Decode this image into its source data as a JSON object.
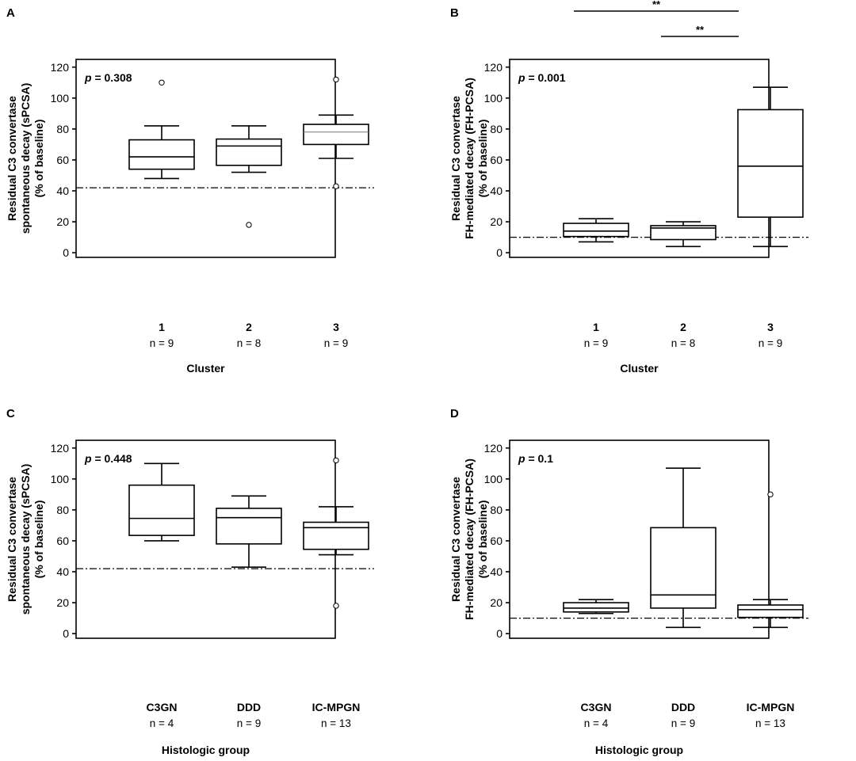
{
  "panels": [
    {
      "letter": "A",
      "pvalue_prefix": "p",
      "pvalue_rest": " = 0.308",
      "ylabel_lines": [
        "Residual C3 convertase",
        "spontaneous decay (sPCSA)",
        "(% of baseline)"
      ],
      "xlabel": "Cluster",
      "categories": [
        "1",
        "2",
        "3"
      ],
      "n_labels": [
        "n = 9",
        "n = 8",
        "n = 9"
      ],
      "significance": []
    },
    {
      "letter": "B",
      "pvalue_prefix": "p",
      "pvalue_rest": " = 0.001",
      "ylabel_lines": [
        "Residual C3 convertase",
        "FH-mediated decay (FH-PCSA)",
        "(% of baseline)"
      ],
      "xlabel": "Cluster",
      "categories": [
        "1",
        "2",
        "3"
      ],
      "n_labels": [
        "n = 9",
        "n = 8",
        "n = 9"
      ],
      "significance": [
        {
          "from": "1",
          "to": "3",
          "label": "**"
        },
        {
          "from": "2",
          "to": "3",
          "label": "**"
        }
      ]
    },
    {
      "letter": "C",
      "pvalue_prefix": "p",
      "pvalue_rest": " = 0.448",
      "ylabel_lines": [
        "Residual C3 convertase",
        "spontaneous decay (sPCSA)",
        "(% of baseline)"
      ],
      "xlabel": "Histologic group",
      "categories": [
        "C3GN",
        "DDD",
        "IC-MPGN"
      ],
      "n_labels": [
        "n = 4",
        "n = 9",
        "n = 13"
      ],
      "significance": []
    },
    {
      "letter": "D",
      "pvalue_prefix": "p",
      "pvalue_rest": " = 0.1",
      "ylabel_lines": [
        "Residual C3 convertase",
        "FH-mediated decay (FH-PCSA)",
        "(% of baseline)"
      ],
      "xlabel": "Histologic group",
      "categories": [
        "C3GN",
        "DDD",
        "IC-MPGN"
      ],
      "n_labels": [
        "n = 4",
        "n = 9",
        "n = 13"
      ],
      "significance": []
    }
  ],
  "chart_data": [
    {
      "type": "box",
      "panel": "A",
      "title": "",
      "xlabel": "Cluster",
      "ylabel": "Residual C3 convertase spontaneous decay (sPCSA) (% of baseline)",
      "ylim": [
        -3,
        125
      ],
      "yticks": [
        0,
        20,
        40,
        60,
        80,
        100,
        120
      ],
      "reference_line": 42,
      "categories": [
        "1",
        "2",
        "3"
      ],
      "boxes": [
        {
          "min": 48,
          "q1": 54,
          "median": 62,
          "q3": 73,
          "max": 82,
          "outliers": [
            110
          ],
          "median_style": "bold"
        },
        {
          "min": 52,
          "q1": 56.5,
          "median": 69,
          "q3": 73.5,
          "max": 82,
          "outliers": [
            18
          ],
          "median_style": "bold"
        },
        {
          "min": 61,
          "q1": 70,
          "median": 78,
          "q3": 83,
          "max": 89,
          "outliers": [
            112,
            43
          ],
          "median_style": "thin"
        }
      ],
      "p_value": "0.308"
    },
    {
      "type": "box",
      "panel": "B",
      "title": "",
      "xlabel": "Cluster",
      "ylabel": "Residual C3 convertase FH-mediated decay (FH-PCSA) (% of baseline)",
      "ylim": [
        -3,
        125
      ],
      "yticks": [
        0,
        20,
        40,
        60,
        80,
        100,
        120
      ],
      "reference_line": 10,
      "categories": [
        "1",
        "2",
        "3"
      ],
      "boxes": [
        {
          "min": 7,
          "q1": 10.5,
          "median": 14,
          "q3": 19,
          "max": 22,
          "outliers": [],
          "median_style": "bold"
        },
        {
          "min": 4,
          "q1": 8.5,
          "median": 16,
          "q3": 17.5,
          "max": 20,
          "outliers": [],
          "median_style": "bold"
        },
        {
          "min": 4,
          "q1": 23,
          "median": 56,
          "q3": 92.5,
          "max": 107,
          "outliers": [],
          "median_style": "bold"
        }
      ],
      "p_value": "0.001"
    },
    {
      "type": "box",
      "panel": "C",
      "title": "",
      "xlabel": "Histologic group",
      "ylabel": "Residual C3 convertase spontaneous decay (sPCSA) (% of baseline)",
      "ylim": [
        -3,
        125
      ],
      "yticks": [
        0,
        20,
        40,
        60,
        80,
        100,
        120
      ],
      "reference_line": 42,
      "categories": [
        "C3GN",
        "DDD",
        "IC-MPGN"
      ],
      "boxes": [
        {
          "min": 60,
          "q1": 63.5,
          "median": 74.5,
          "q3": 96,
          "max": 110,
          "outliers": [],
          "median_style": "bold"
        },
        {
          "min": 43,
          "q1": 58,
          "median": 75,
          "q3": 81,
          "max": 89,
          "outliers": [],
          "median_style": "bold"
        },
        {
          "min": 51,
          "q1": 54.5,
          "median": 68.5,
          "q3": 72,
          "max": 82,
          "outliers": [
            112,
            18
          ],
          "median_style": "bold"
        }
      ],
      "p_value": "0.448"
    },
    {
      "type": "box",
      "panel": "D",
      "title": "",
      "xlabel": "Histologic group",
      "ylabel": "Residual C3 convertase FH-mediated decay (FH-PCSA) (% of baseline)",
      "ylim": [
        -3,
        125
      ],
      "yticks": [
        0,
        20,
        40,
        60,
        80,
        100,
        120
      ],
      "reference_line": 10,
      "categories": [
        "C3GN",
        "DDD",
        "IC-MPGN"
      ],
      "boxes": [
        {
          "min": 13,
          "q1": 14,
          "median": 16.5,
          "q3": 20,
          "max": 22,
          "outliers": [],
          "median_style": "bold"
        },
        {
          "min": 4,
          "q1": 16.5,
          "median": 25,
          "q3": 68.5,
          "max": 107,
          "outliers": [],
          "median_style": "bold"
        },
        {
          "min": 4,
          "q1": 10.5,
          "median": 15.5,
          "q3": 18.5,
          "max": 22,
          "outliers": [
            90
          ],
          "median_style": "bold"
        }
      ],
      "p_value": "0.1"
    }
  ]
}
